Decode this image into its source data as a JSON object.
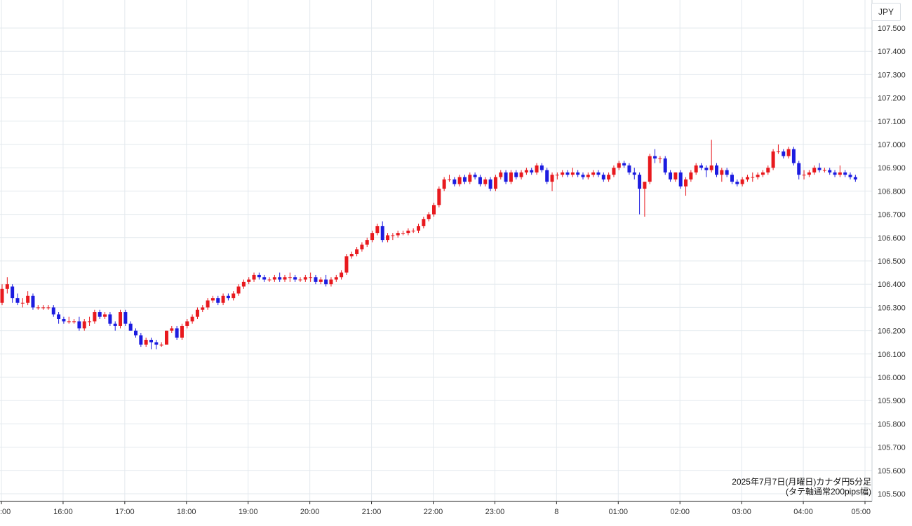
{
  "currency": "JPY",
  "caption": {
    "line1": "2025年7月7日(月曜日)カナダ円5分足",
    "line2": "(タテ軸通常200pips幅)"
  },
  "colors": {
    "up": "#e8191e",
    "down": "#1c1ce0",
    "grid": "#e3e9ee",
    "axis_text": "#333333"
  },
  "chart_data": {
    "type": "candlestick",
    "title": "",
    "interval": "5min",
    "ylim": [
      105.5,
      107.5
    ],
    "y_ticks": [
      "107.500",
      "107.400",
      "107.300",
      "107.200",
      "107.100",
      "107.000",
      "106.900",
      "106.800",
      "106.700",
      "106.600",
      "106.500",
      "106.400",
      "106.300",
      "106.200",
      "106.100",
      "106.000",
      "105.900",
      "105.800",
      "105.700",
      "105.600",
      "105.500"
    ],
    "x_ticks": [
      ":00",
      "16:00",
      "17:00",
      "18:00",
      "19:00",
      "20:00",
      "21:00",
      "22:00",
      "23:00",
      "8",
      "01:00",
      "02:00",
      "03:00",
      "04:00",
      "05:00"
    ],
    "ohlc": [
      [
        106.32,
        106.4,
        106.31,
        106.38
      ],
      [
        106.38,
        106.43,
        106.36,
        106.4
      ],
      [
        106.39,
        106.4,
        106.32,
        106.34
      ],
      [
        106.34,
        106.36,
        106.31,
        106.32
      ],
      [
        106.32,
        106.34,
        106.3,
        106.32
      ],
      [
        106.32,
        106.37,
        106.31,
        106.35
      ],
      [
        106.35,
        106.36,
        106.29,
        106.3
      ],
      [
        106.3,
        106.31,
        106.29,
        106.3
      ],
      [
        106.3,
        106.31,
        106.29,
        106.3
      ],
      [
        106.3,
        106.31,
        106.29,
        106.3
      ],
      [
        106.3,
        106.31,
        106.26,
        106.27
      ],
      [
        106.27,
        106.28,
        106.23,
        106.25
      ],
      [
        106.25,
        106.26,
        106.23,
        106.24
      ],
      [
        106.24,
        106.26,
        106.23,
        106.24
      ],
      [
        106.24,
        106.25,
        106.23,
        106.24
      ],
      [
        106.24,
        106.26,
        106.2,
        106.21
      ],
      [
        106.21,
        106.25,
        106.2,
        106.24
      ],
      [
        106.24,
        106.26,
        106.22,
        106.24
      ],
      [
        106.24,
        106.29,
        106.23,
        106.28
      ],
      [
        106.28,
        106.29,
        106.25,
        106.26
      ],
      [
        106.26,
        106.28,
        106.25,
        106.27
      ],
      [
        106.27,
        106.28,
        106.22,
        106.23
      ],
      [
        106.23,
        106.24,
        106.2,
        106.22
      ],
      [
        106.22,
        106.29,
        106.21,
        106.28
      ],
      [
        106.28,
        106.29,
        106.22,
        106.23
      ],
      [
        106.23,
        106.24,
        106.2,
        106.2
      ],
      [
        106.2,
        106.21,
        106.17,
        106.18
      ],
      [
        106.18,
        106.19,
        106.13,
        106.14
      ],
      [
        106.14,
        106.17,
        106.13,
        106.16
      ],
      [
        106.16,
        106.17,
        106.12,
        106.15
      ],
      [
        106.15,
        106.16,
        106.12,
        106.14
      ],
      [
        106.14,
        106.15,
        106.13,
        106.14
      ],
      [
        106.14,
        106.2,
        106.14,
        106.2
      ],
      [
        106.2,
        106.22,
        106.19,
        106.21
      ],
      [
        106.21,
        106.22,
        106.16,
        106.17
      ],
      [
        106.17,
        106.23,
        106.16,
        106.22
      ],
      [
        106.22,
        106.25,
        106.21,
        106.24
      ],
      [
        106.24,
        106.27,
        106.23,
        106.26
      ],
      [
        106.26,
        106.3,
        106.25,
        106.29
      ],
      [
        106.29,
        106.31,
        106.28,
        106.3
      ],
      [
        106.3,
        106.34,
        106.29,
        106.33
      ],
      [
        106.33,
        106.35,
        106.32,
        106.34
      ],
      [
        106.34,
        106.35,
        106.31,
        106.32
      ],
      [
        106.32,
        106.36,
        106.31,
        106.35
      ],
      [
        106.35,
        106.36,
        106.33,
        106.34
      ],
      [
        106.34,
        106.37,
        106.33,
        106.36
      ],
      [
        106.36,
        106.4,
        106.35,
        106.39
      ],
      [
        106.39,
        106.42,
        106.38,
        106.41
      ],
      [
        106.41,
        106.43,
        106.4,
        106.42
      ],
      [
        106.42,
        106.45,
        106.41,
        106.44
      ],
      [
        106.44,
        106.45,
        106.42,
        106.43
      ],
      [
        106.43,
        106.44,
        106.41,
        106.42
      ],
      [
        106.42,
        106.43,
        106.41,
        106.42
      ],
      [
        106.42,
        106.44,
        106.41,
        106.43
      ],
      [
        106.43,
        106.45,
        106.41,
        106.42
      ],
      [
        106.42,
        106.44,
        106.41,
        106.43
      ],
      [
        106.43,
        106.45,
        106.41,
        106.43
      ],
      [
        106.43,
        106.44,
        106.41,
        106.42
      ],
      [
        106.42,
        106.43,
        106.41,
        106.42
      ],
      [
        106.42,
        106.44,
        106.41,
        106.43
      ],
      [
        106.43,
        106.45,
        106.41,
        106.43
      ],
      [
        106.43,
        106.44,
        106.4,
        106.41
      ],
      [
        106.41,
        106.43,
        106.4,
        106.42
      ],
      [
        106.42,
        106.44,
        106.39,
        106.4
      ],
      [
        106.4,
        106.43,
        106.39,
        106.42
      ],
      [
        106.42,
        106.44,
        106.41,
        106.43
      ],
      [
        106.43,
        106.46,
        106.42,
        106.45
      ],
      [
        106.45,
        106.53,
        106.44,
        106.52
      ],
      [
        106.52,
        106.54,
        106.51,
        106.53
      ],
      [
        106.53,
        106.56,
        106.52,
        106.55
      ],
      [
        106.55,
        106.58,
        106.54,
        106.57
      ],
      [
        106.57,
        106.6,
        106.56,
        106.59
      ],
      [
        106.59,
        106.63,
        106.58,
        106.62
      ],
      [
        106.62,
        106.66,
        106.61,
        106.65
      ],
      [
        106.65,
        106.67,
        106.58,
        106.59
      ],
      [
        106.59,
        106.62,
        106.58,
        106.61
      ],
      [
        106.61,
        106.62,
        106.59,
        106.61
      ],
      [
        106.61,
        106.63,
        106.6,
        106.62
      ],
      [
        106.62,
        106.63,
        106.61,
        106.62
      ],
      [
        106.62,
        106.64,
        106.61,
        106.63
      ],
      [
        106.63,
        106.64,
        106.62,
        106.63
      ],
      [
        106.63,
        106.66,
        106.62,
        106.65
      ],
      [
        106.65,
        106.69,
        106.64,
        106.68
      ],
      [
        106.68,
        106.71,
        106.67,
        106.7
      ],
      [
        106.7,
        106.75,
        106.69,
        106.74
      ],
      [
        106.74,
        106.82,
        106.73,
        106.81
      ],
      [
        106.81,
        106.86,
        106.8,
        106.85
      ],
      [
        106.85,
        106.87,
        106.84,
        106.85
      ],
      [
        106.85,
        106.86,
        106.82,
        106.83
      ],
      [
        106.83,
        106.87,
        106.82,
        106.86
      ],
      [
        106.86,
        106.87,
        106.83,
        106.84
      ],
      [
        106.84,
        106.88,
        106.83,
        106.87
      ],
      [
        106.87,
        106.88,
        106.85,
        106.86
      ],
      [
        106.86,
        106.87,
        106.82,
        106.83
      ],
      [
        106.83,
        106.86,
        106.82,
        106.85
      ],
      [
        106.85,
        106.86,
        106.8,
        106.81
      ],
      [
        106.81,
        106.87,
        106.8,
        106.86
      ],
      [
        106.86,
        106.89,
        106.85,
        106.88
      ],
      [
        106.88,
        106.89,
        106.83,
        106.84
      ],
      [
        106.84,
        106.89,
        106.83,
        106.88
      ],
      [
        106.88,
        106.89,
        106.85,
        106.86
      ],
      [
        106.86,
        106.89,
        106.85,
        106.88
      ],
      [
        106.88,
        106.9,
        106.87,
        106.89
      ],
      [
        106.89,
        106.9,
        106.87,
        106.88
      ],
      [
        106.88,
        106.92,
        106.87,
        106.91
      ],
      [
        106.91,
        106.92,
        106.88,
        106.89
      ],
      [
        106.89,
        106.9,
        106.83,
        106.84
      ],
      [
        106.84,
        106.88,
        106.8,
        106.87
      ],
      [
        106.87,
        106.88,
        106.85,
        106.87
      ],
      [
        106.87,
        106.89,
        106.86,
        106.88
      ],
      [
        106.88,
        106.89,
        106.86,
        106.87
      ],
      [
        106.87,
        106.9,
        106.86,
        106.88
      ],
      [
        106.88,
        106.89,
        106.86,
        106.87
      ],
      [
        106.87,
        106.88,
        106.85,
        106.86
      ],
      [
        106.86,
        106.88,
        106.85,
        106.87
      ],
      [
        106.87,
        106.89,
        106.86,
        106.88
      ],
      [
        106.88,
        106.89,
        106.86,
        106.87
      ],
      [
        106.87,
        106.88,
        106.84,
        106.85
      ],
      [
        106.85,
        106.88,
        106.84,
        106.87
      ],
      [
        106.87,
        106.91,
        106.86,
        106.9
      ],
      [
        106.9,
        106.93,
        106.89,
        106.92
      ],
      [
        106.92,
        106.93,
        106.9,
        106.91
      ],
      [
        106.91,
        106.92,
        106.87,
        106.88
      ],
      [
        106.88,
        106.9,
        106.85,
        106.87
      ],
      [
        106.87,
        106.88,
        106.7,
        106.81
      ],
      [
        106.81,
        106.84,
        106.69,
        106.84
      ],
      [
        106.84,
        106.96,
        106.83,
        106.95
      ],
      [
        106.95,
        106.98,
        106.92,
        106.94
      ],
      [
        106.94,
        106.95,
        106.92,
        106.94
      ],
      [
        106.94,
        106.95,
        106.87,
        106.88
      ],
      [
        106.88,
        106.89,
        106.84,
        106.85
      ],
      [
        106.85,
        106.88,
        106.84,
        106.88
      ],
      [
        106.88,
        106.89,
        106.81,
        106.82
      ],
      [
        106.82,
        106.86,
        106.78,
        106.85
      ],
      [
        106.85,
        106.89,
        106.84,
        106.88
      ],
      [
        106.88,
        106.92,
        106.87,
        106.91
      ],
      [
        106.91,
        106.92,
        106.89,
        106.9
      ],
      [
        106.9,
        106.91,
        106.86,
        106.89
      ],
      [
        106.89,
        107.02,
        106.88,
        106.91
      ],
      [
        106.91,
        106.92,
        106.86,
        106.87
      ],
      [
        106.87,
        106.9,
        106.84,
        106.89
      ],
      [
        106.89,
        106.9,
        106.86,
        106.87
      ],
      [
        106.87,
        106.88,
        106.83,
        106.84
      ],
      [
        106.84,
        106.85,
        106.82,
        106.83
      ],
      [
        106.83,
        106.86,
        106.82,
        106.85
      ],
      [
        106.85,
        106.87,
        106.84,
        106.86
      ],
      [
        106.86,
        106.88,
        106.84,
        106.86
      ],
      [
        106.86,
        106.88,
        106.85,
        106.87
      ],
      [
        106.87,
        106.89,
        106.86,
        106.88
      ],
      [
        106.88,
        106.91,
        106.87,
        106.9
      ],
      [
        106.9,
        106.98,
        106.89,
        106.97
      ],
      [
        106.97,
        107.0,
        106.96,
        106.97
      ],
      [
        106.97,
        106.98,
        106.94,
        106.95
      ],
      [
        106.95,
        106.99,
        106.94,
        106.98
      ],
      [
        106.98,
        106.99,
        106.91,
        106.92
      ],
      [
        106.92,
        106.93,
        106.85,
        106.87
      ],
      [
        106.87,
        106.89,
        106.85,
        106.87
      ],
      [
        106.87,
        106.89,
        106.86,
        106.88
      ],
      [
        106.88,
        106.91,
        106.87,
        106.9
      ],
      [
        106.9,
        106.92,
        106.88,
        106.89
      ],
      [
        106.89,
        106.9,
        106.88,
        106.89
      ],
      [
        106.89,
        106.9,
        106.87,
        106.88
      ],
      [
        106.88,
        106.89,
        106.86,
        106.87
      ],
      [
        106.87,
        106.91,
        106.86,
        106.88
      ],
      [
        106.88,
        106.89,
        106.86,
        106.87
      ],
      [
        106.87,
        106.88,
        106.85,
        106.86
      ],
      [
        106.86,
        106.87,
        106.84,
        106.85
      ]
    ]
  }
}
